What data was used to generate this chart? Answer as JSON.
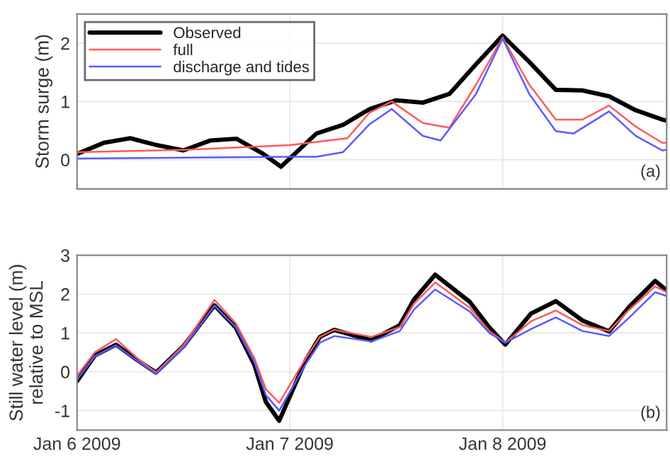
{
  "chart_data": [
    {
      "type": "line",
      "ylabel": "Storm surge (m)",
      "annotations": [
        "(a)"
      ],
      "legend": "top left",
      "grid": true,
      "tick_labels": "y",
      "xlim": [
        "2009-01-06T00:00",
        "2009-01-08T18:30"
      ],
      "xticks": [
        {
          "value": "2009-01-06",
          "label": null
        },
        {
          "value": "2009-01-07",
          "label": null
        },
        {
          "value": "2009-01-08",
          "label": null
        }
      ],
      "ylim": [
        -0.5,
        2.5
      ],
      "yticks": [
        0,
        1,
        2
      ],
      "series": [
        {
          "name": "Observed",
          "color": "#000000",
          "x": [
            "2009-01-06T00:00",
            "2009-01-06T03:00",
            "2009-01-06T06:00",
            "2009-01-06T09:00",
            "2009-01-06T12:00",
            "2009-01-06T15:00",
            "2009-01-06T18:00",
            "2009-01-06T21:00",
            "2009-01-06T23:00",
            "2009-01-07T03:00",
            "2009-01-07T06:00",
            "2009-01-07T09:00",
            "2009-01-07T12:00",
            "2009-01-07T15:00",
            "2009-01-07T18:00",
            "2009-01-07T21:00",
            "2009-01-08T00:00",
            "2009-01-08T03:00",
            "2009-01-08T06:00",
            "2009-01-08T09:00",
            "2009-01-08T12:00",
            "2009-01-08T15:00",
            "2009-01-08T18:00",
            "2009-01-08T18:30"
          ],
          "values": [
            0.1,
            0.29,
            0.37,
            0.25,
            0.16,
            0.33,
            0.36,
            0.1,
            -0.12,
            0.45,
            0.6,
            0.87,
            1.02,
            0.98,
            1.13,
            1.64,
            2.13,
            1.68,
            1.2,
            1.19,
            1.09,
            0.85,
            0.69,
            0.67
          ]
        },
        {
          "name": "full",
          "color": "#ff5a5a",
          "x": [
            "2009-01-06T00:00",
            "2009-01-06T12:00",
            "2009-01-07T00:00",
            "2009-01-07T06:30",
            "2009-01-07T09:00",
            "2009-01-07T11:30",
            "2009-01-07T15:00",
            "2009-01-07T18:00",
            "2009-01-07T21:00",
            "2009-01-08T00:00",
            "2009-01-08T03:00",
            "2009-01-08T06:00",
            "2009-01-08T09:00",
            "2009-01-08T12:00",
            "2009-01-08T15:00",
            "2009-01-08T18:00",
            "2009-01-08T18:30"
          ],
          "values": [
            0.13,
            0.17,
            0.25,
            0.37,
            0.81,
            1.0,
            0.63,
            0.55,
            1.29,
            2.1,
            1.29,
            0.69,
            0.69,
            0.93,
            0.57,
            0.29,
            0.29
          ]
        },
        {
          "name": "discharge and tides",
          "color": "#5a5aff",
          "x": [
            "2009-01-06T00:00",
            "2009-01-07T00:00",
            "2009-01-07T03:00",
            "2009-01-07T06:00",
            "2009-01-07T09:00",
            "2009-01-07T11:30",
            "2009-01-07T15:00",
            "2009-01-07T17:00",
            "2009-01-07T21:00",
            "2009-01-08T00:00",
            "2009-01-08T03:00",
            "2009-01-08T06:00",
            "2009-01-08T08:00",
            "2009-01-08T12:00",
            "2009-01-08T15:00",
            "2009-01-08T18:00",
            "2009-01-08T18:30"
          ],
          "values": [
            0.02,
            0.05,
            0.05,
            0.13,
            0.61,
            0.87,
            0.41,
            0.33,
            1.13,
            2.08,
            1.13,
            0.49,
            0.45,
            0.83,
            0.41,
            0.16,
            0.17
          ]
        }
      ]
    },
    {
      "type": "line",
      "ylabel": "Still water level (m)\nrelative to MSL",
      "annotations": [
        "(b)"
      ],
      "grid": true,
      "xlim": [
        "2009-01-06T00:00",
        "2009-01-08T18:30"
      ],
      "xticks": [
        {
          "value": "2009-01-06",
          "label": "Jan 6 2009"
        },
        {
          "value": "2009-01-07",
          "label": "Jan 7 2009"
        },
        {
          "value": "2009-01-08",
          "label": "Jan 8 2009"
        }
      ],
      "ylim": [
        -1.5,
        3
      ],
      "yticks": [
        -1,
        0,
        1,
        2,
        3
      ],
      "x": [
        "2009-01-06T00:00",
        "2009-01-06T02:00",
        "2009-01-06T04:24",
        "2009-01-06T06:48",
        "2009-01-06T08:54",
        "2009-01-06T12:00",
        "2009-01-06T15:30",
        "2009-01-06T17:54",
        "2009-01-06T20:00",
        "2009-01-06T21:18",
        "2009-01-06T22:48",
        "2009-01-07T01:48",
        "2009-01-07T03:24",
        "2009-01-07T05:00",
        "2009-01-07T09:12",
        "2009-01-07T12:24",
        "2009-01-07T14:00",
        "2009-01-07T16:24",
        "2009-01-07T20:18",
        "2009-01-07T22:30",
        "2009-01-08T00:18",
        "2009-01-08T03:12",
        "2009-01-08T06:00",
        "2009-01-08T09:00",
        "2009-01-08T12:00",
        "2009-01-08T14:18",
        "2009-01-08T17:12",
        "2009-01-08T18:30"
      ],
      "series": [
        {
          "color": "#000000",
          "values": [
            -0.24,
            0.42,
            0.7,
            0.3,
            -0.02,
            0.66,
            1.71,
            1.14,
            0.18,
            -0.78,
            -1.26,
            0.3,
            0.9,
            1.08,
            0.81,
            1.2,
            1.86,
            2.5,
            1.8,
            1.14,
            0.7,
            1.5,
            1.82,
            1.32,
            1.04,
            1.68,
            2.34,
            2.1
          ]
        },
        {
          "color": "#ff5a5a",
          "values": [
            -0.1,
            0.5,
            0.84,
            0.35,
            -0.02,
            0.68,
            1.85,
            1.25,
            0.35,
            -0.45,
            -0.8,
            0.35,
            0.9,
            1.08,
            0.9,
            1.15,
            1.75,
            2.3,
            1.65,
            1.05,
            0.75,
            1.3,
            1.58,
            1.2,
            1.05,
            1.6,
            2.2,
            2.05
          ]
        },
        {
          "color": "#5a5aff",
          "values": [
            -0.2,
            0.4,
            0.68,
            0.28,
            -0.05,
            0.62,
            1.7,
            1.15,
            0.25,
            -0.6,
            -1.0,
            0.2,
            0.75,
            0.92,
            0.78,
            1.05,
            1.6,
            2.12,
            1.55,
            1.0,
            0.75,
            1.1,
            1.4,
            1.05,
            0.92,
            1.4,
            2.05,
            1.95
          ]
        }
      ]
    }
  ]
}
